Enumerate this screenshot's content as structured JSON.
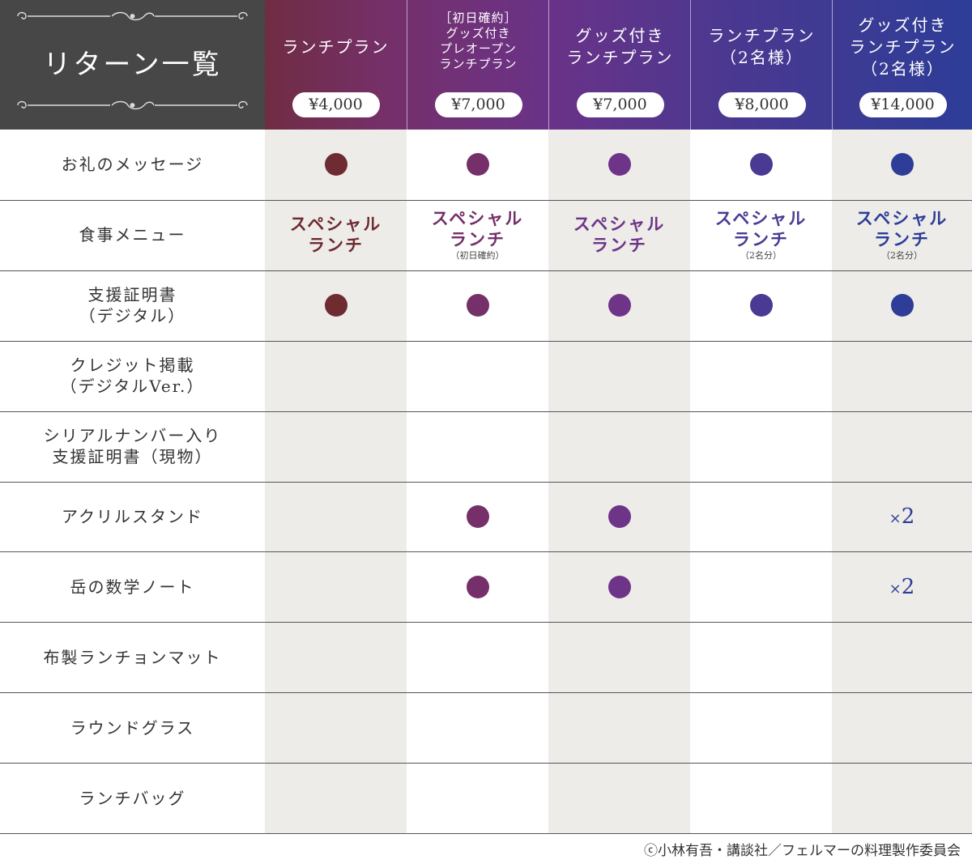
{
  "title": "リターン一覧",
  "colors": {
    "title_bg": "#474747",
    "shade_col": "#edece8",
    "plan_colors": [
      "#6e2b32",
      "#75306a",
      "#6e3488",
      "#4b3a93",
      "#2d3d98"
    ]
  },
  "plans": [
    {
      "name": "ランチプラン",
      "price": "¥4,000"
    },
    {
      "name": "［初日確約］\nグッズ付き\nプレオープン\nランチプラン",
      "price": "¥7,000"
    },
    {
      "name": "グッズ付き\nランチプラン",
      "price": "¥7,000"
    },
    {
      "name": "ランチプラン\n（2名様）",
      "price": "¥8,000"
    },
    {
      "name": "グッズ付き\nランチプラン\n（2名様）",
      "price": "¥14,000"
    }
  ],
  "rows": [
    {
      "label": "お礼のメッセージ",
      "cells": [
        "dot",
        "dot",
        "dot",
        "dot",
        "dot"
      ]
    },
    {
      "label": "食事メニュー",
      "cells": [
        "meal",
        "meal",
        "meal",
        "meal",
        "meal"
      ]
    },
    {
      "label": "支援証明書\n（デジタル）",
      "cells": [
        "dot",
        "dot",
        "dot",
        "dot",
        "dot"
      ]
    },
    {
      "label": "クレジット掲載\n（デジタルVer.）",
      "cells": [
        "",
        "",
        "",
        "",
        ""
      ]
    },
    {
      "label": "シリアルナンバー入り\n支援証明書（現物）",
      "cells": [
        "",
        "",
        "",
        "",
        ""
      ]
    },
    {
      "label": "アクリルスタンド",
      "cells": [
        "",
        "dot",
        "dot",
        "",
        "×2"
      ]
    },
    {
      "label": "岳の数学ノート",
      "cells": [
        "",
        "dot",
        "dot",
        "",
        "×2"
      ]
    },
    {
      "label": "布製ランチョンマット",
      "cells": [
        "",
        "",
        "",
        "",
        ""
      ]
    },
    {
      "label": "ラウンドグラス",
      "cells": [
        "",
        "",
        "",
        "",
        ""
      ]
    },
    {
      "label": "ランチバッグ",
      "cells": [
        "",
        "",
        "",
        "",
        ""
      ]
    }
  ],
  "meals": [
    {
      "main": "スペシャル\nランチ",
      "note": ""
    },
    {
      "main": "スペシャル\nランチ",
      "note": "（初日確約）"
    },
    {
      "main": "スペシャル\nランチ",
      "note": ""
    },
    {
      "main": "スペシャル\nランチ",
      "note": "（2名分）"
    },
    {
      "main": "スペシャル\nランチ",
      "note": "（2名分）"
    }
  ],
  "copyright": "ⓒ小林有吾・講談社／フェルマーの料理製作委員会"
}
